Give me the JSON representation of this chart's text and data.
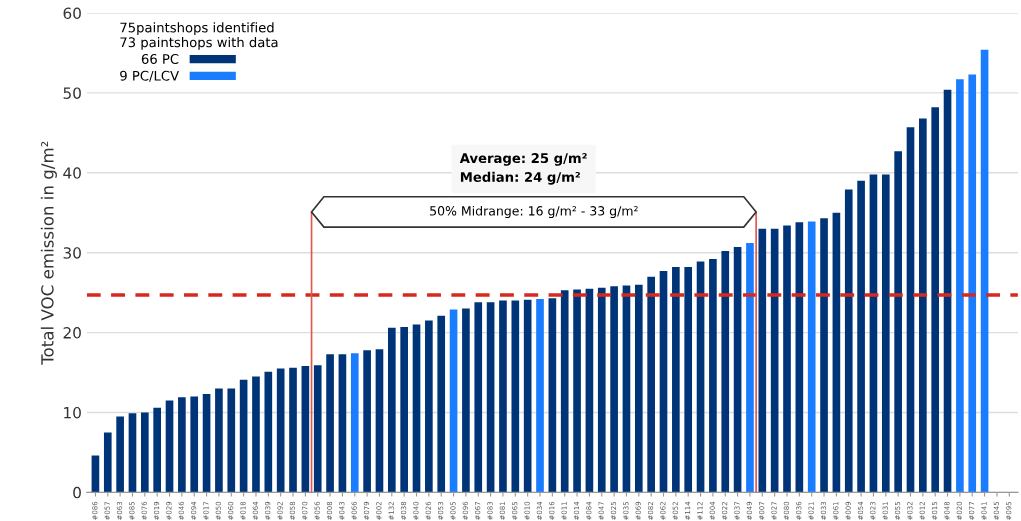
{
  "chart_data": {
    "type": "bar",
    "ylabel": "Total VOC emission in g/m²",
    "legend_title": "75paintshops identified\n73 paintshops with data",
    "categories": [
      "#086",
      "#057",
      "#063",
      "#085",
      "#076",
      "#019",
      "#029",
      "#046",
      "#094",
      "#017",
      "#050",
      "#060",
      "#018",
      "#064",
      "#039",
      "#092",
      "#058",
      "#070",
      "#056",
      "#008",
      "#043",
      "#066",
      "#079",
      "#002",
      "#132",
      "#038",
      "#040",
      "#026",
      "#053",
      "#005",
      "#096",
      "#067",
      "#083",
      "#081",
      "#065",
      "#010",
      "#034",
      "#016",
      "#011",
      "#014",
      "#084",
      "#047",
      "#025",
      "#035",
      "#069",
      "#082",
      "#062",
      "#052",
      "#114",
      "#112",
      "#004",
      "#022",
      "#037",
      "#049",
      "#007",
      "#027",
      "#080",
      "#036",
      "#021",
      "#033",
      "#061",
      "#009",
      "#054",
      "#023",
      "#031",
      "#055",
      "#032",
      "#012",
      "#015",
      "#048",
      "#020",
      "#077",
      "#041",
      "#045",
      "#095"
    ],
    "series": [
      {
        "name": "66 PC",
        "color": "#003478",
        "values": [
          4.6,
          7.5,
          9.5,
          9.9,
          10.0,
          10.6,
          11.5,
          11.9,
          12.0,
          12.3,
          13.0,
          13.0,
          14.1,
          14.5,
          15.1,
          15.5,
          15.6,
          15.8,
          15.9,
          17.3,
          17.3,
          null,
          17.8,
          17.9,
          20.6,
          20.7,
          21.0,
          21.5,
          22.1,
          null,
          23.0,
          23.8,
          23.8,
          24.0,
          24.0,
          24.1,
          null,
          24.3,
          25.3,
          25.4,
          25.5,
          25.6,
          25.8,
          25.9,
          26.0,
          27.0,
          27.7,
          28.2,
          28.2,
          28.9,
          29.2,
          30.2,
          30.7,
          null,
          33.0,
          33.0,
          33.4,
          33.8,
          null,
          34.3,
          35.0,
          37.9,
          39.0,
          39.8,
          39.8,
          42.7,
          45.7,
          46.8,
          48.2,
          50.4,
          null,
          null,
          null,
          null,
          null
        ]
      },
      {
        "name": "9 PC/LCV",
        "color": "#1a7cff",
        "values": [
          null,
          null,
          null,
          null,
          null,
          null,
          null,
          null,
          null,
          null,
          null,
          null,
          null,
          null,
          null,
          null,
          null,
          null,
          null,
          null,
          null,
          17.4,
          null,
          null,
          null,
          null,
          null,
          null,
          null,
          22.9,
          null,
          null,
          null,
          null,
          null,
          null,
          24.2,
          null,
          null,
          null,
          null,
          null,
          null,
          null,
          null,
          null,
          null,
          null,
          null,
          null,
          null,
          null,
          null,
          31.2,
          null,
          null,
          null,
          null,
          33.9,
          null,
          null,
          null,
          null,
          null,
          null,
          null,
          null,
          null,
          null,
          null,
          51.7,
          52.3,
          55.4,
          null,
          null
        ]
      }
    ],
    "ylim": [
      0,
      60
    ],
    "yticks": [
      0,
      10,
      20,
      30,
      40,
      50,
      60
    ],
    "grid": "y",
    "legend": "top left",
    "ref_lines": [
      {
        "axis": "y",
        "value": 24.7,
        "color": "#d7281e",
        "line_style": "dashed"
      },
      {
        "axis": "x",
        "value": "#070",
        "color": "#e0574b",
        "line_style": "solid"
      },
      {
        "axis": "x",
        "value": "#049",
        "color": "#e0574b",
        "line_style": "solid"
      }
    ],
    "annotations": [
      "Average: 25 g/m²\nMedian: 24 g/m²",
      "50% Midrange: 16 g/m² - 33 g/m²"
    ]
  }
}
